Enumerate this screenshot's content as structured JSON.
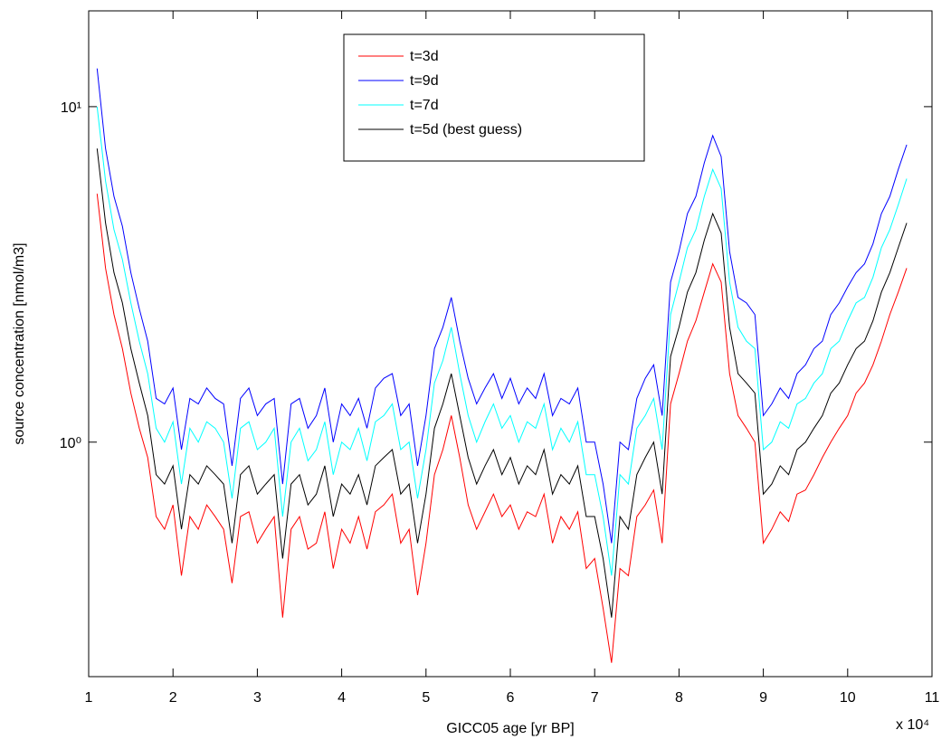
{
  "chart_data": {
    "type": "line",
    "x_label": "GICC05 age  [yr BP]",
    "y_label": "source concentration  [nmol/m3]",
    "x_multiplier": "x 10⁴",
    "log_y": true,
    "legend": "top-center",
    "xlim": [
      10000,
      110000
    ],
    "xticks": [
      {
        "value": 10000,
        "label": "1"
      },
      {
        "value": 20000,
        "label": "2"
      },
      {
        "value": 30000,
        "label": "3"
      },
      {
        "value": 40000,
        "label": "4"
      },
      {
        "value": 50000,
        "label": "5"
      },
      {
        "value": 60000,
        "label": "6"
      },
      {
        "value": 70000,
        "label": "7"
      },
      {
        "value": 80000,
        "label": "8"
      },
      {
        "value": 90000,
        "label": "9"
      },
      {
        "value": 100000,
        "label": "10"
      },
      {
        "value": 110000,
        "label": "11"
      }
    ],
    "ylim": [
      0.2,
      19.3
    ],
    "yticks": [
      {
        "value": 1,
        "label": "10⁰"
      },
      {
        "value": 10,
        "label": "10¹"
      }
    ],
    "x": [
      11000,
      12000,
      13000,
      14000,
      15000,
      16000,
      17000,
      18000,
      19000,
      20000,
      21000,
      22000,
      23000,
      24000,
      25000,
      26000,
      27000,
      28000,
      29000,
      30000,
      31000,
      32000,
      33000,
      34000,
      35000,
      36000,
      37000,
      38000,
      39000,
      40000,
      41000,
      42000,
      43000,
      44000,
      45000,
      46000,
      47000,
      48000,
      49000,
      50000,
      51000,
      52000,
      53000,
      54000,
      55000,
      56000,
      57000,
      58000,
      59000,
      60000,
      61000,
      62000,
      63000,
      64000,
      65000,
      66000,
      67000,
      68000,
      69000,
      70000,
      71000,
      72000,
      73000,
      74000,
      75000,
      76000,
      77000,
      78000,
      79000,
      80000,
      81000,
      82000,
      83000,
      84000,
      85000,
      86000,
      87000,
      88000,
      89000,
      90000,
      91000,
      92000,
      93000,
      94000,
      95000,
      96000,
      97000,
      98000,
      99000,
      100000,
      101000,
      102000,
      103000,
      104000,
      105000,
      106000,
      107000
    ],
    "series": [
      {
        "name": "t=3d",
        "color": "#ff0000",
        "values": [
          5.5,
          3.3,
          2.4,
          1.9,
          1.4,
          1.1,
          0.9,
          0.6,
          0.55,
          0.65,
          0.4,
          0.6,
          0.55,
          0.65,
          0.6,
          0.55,
          0.38,
          0.6,
          0.62,
          0.5,
          0.55,
          0.6,
          0.3,
          0.55,
          0.6,
          0.48,
          0.5,
          0.62,
          0.42,
          0.55,
          0.5,
          0.6,
          0.48,
          0.62,
          0.65,
          0.7,
          0.5,
          0.55,
          0.35,
          0.5,
          0.8,
          0.95,
          1.2,
          0.9,
          0.65,
          0.55,
          0.62,
          0.7,
          0.6,
          0.65,
          0.55,
          0.62,
          0.6,
          0.7,
          0.5,
          0.6,
          0.55,
          0.62,
          0.42,
          0.45,
          0.32,
          0.22,
          0.42,
          0.4,
          0.6,
          0.65,
          0.72,
          0.5,
          1.3,
          1.6,
          2.0,
          2.3,
          2.8,
          3.4,
          3.0,
          1.6,
          1.2,
          1.1,
          1.0,
          0.5,
          0.55,
          0.62,
          0.58,
          0.7,
          0.72,
          0.8,
          0.9,
          1.0,
          1.1,
          1.2,
          1.4,
          1.5,
          1.7,
          2.0,
          2.4,
          2.8,
          3.3
        ]
      },
      {
        "name": "t=9d",
        "color": "#0000ff",
        "values": [
          13,
          7.5,
          5.4,
          4.4,
          3.2,
          2.5,
          2.0,
          1.35,
          1.3,
          1.45,
          0.95,
          1.35,
          1.3,
          1.45,
          1.35,
          1.3,
          0.85,
          1.35,
          1.45,
          1.2,
          1.3,
          1.35,
          0.75,
          1.3,
          1.35,
          1.1,
          1.2,
          1.45,
          1.0,
          1.3,
          1.2,
          1.35,
          1.1,
          1.45,
          1.55,
          1.6,
          1.2,
          1.3,
          0.85,
          1.2,
          1.9,
          2.2,
          2.7,
          2.0,
          1.55,
          1.3,
          1.45,
          1.6,
          1.35,
          1.55,
          1.3,
          1.45,
          1.35,
          1.6,
          1.2,
          1.35,
          1.3,
          1.45,
          1.0,
          1.0,
          0.75,
          0.5,
          1.0,
          0.95,
          1.35,
          1.55,
          1.7,
          1.2,
          3.0,
          3.7,
          4.8,
          5.4,
          6.8,
          8.2,
          7.1,
          3.7,
          2.7,
          2.6,
          2.4,
          1.2,
          1.3,
          1.45,
          1.35,
          1.6,
          1.7,
          1.9,
          2.0,
          2.4,
          2.6,
          2.9,
          3.2,
          3.4,
          3.9,
          4.8,
          5.4,
          6.5,
          7.7
        ]
      },
      {
        "name": "t=7d",
        "color": "#00ffff",
        "values": [
          10,
          6,
          4.3,
          3.5,
          2.6,
          2.0,
          1.6,
          1.1,
          1.0,
          1.15,
          0.75,
          1.1,
          1.0,
          1.15,
          1.1,
          1.0,
          0.68,
          1.1,
          1.15,
          0.95,
          1.0,
          1.1,
          0.6,
          1.0,
          1.1,
          0.88,
          0.95,
          1.15,
          0.8,
          1.0,
          0.95,
          1.1,
          0.88,
          1.15,
          1.2,
          1.3,
          0.95,
          1.0,
          0.68,
          0.95,
          1.5,
          1.75,
          2.2,
          1.6,
          1.2,
          1.0,
          1.15,
          1.3,
          1.1,
          1.2,
          1.0,
          1.15,
          1.1,
          1.3,
          0.95,
          1.1,
          1.0,
          1.15,
          0.8,
          0.8,
          0.6,
          0.4,
          0.8,
          0.75,
          1.1,
          1.2,
          1.35,
          0.95,
          2.4,
          3.0,
          3.8,
          4.3,
          5.4,
          6.5,
          5.7,
          3.0,
          2.2,
          2.0,
          1.9,
          0.95,
          1.0,
          1.15,
          1.1,
          1.3,
          1.35,
          1.5,
          1.6,
          1.9,
          2.0,
          2.3,
          2.6,
          2.7,
          3.1,
          3.8,
          4.3,
          5.1,
          6.1
        ]
      },
      {
        "name": "t=5d (best guess)",
        "color": "#000000",
        "values": [
          7.5,
          4.5,
          3.2,
          2.6,
          1.9,
          1.5,
          1.2,
          0.8,
          0.75,
          0.85,
          0.55,
          0.8,
          0.75,
          0.85,
          0.8,
          0.75,
          0.5,
          0.8,
          0.85,
          0.7,
          0.75,
          0.8,
          0.45,
          0.75,
          0.8,
          0.65,
          0.7,
          0.85,
          0.6,
          0.75,
          0.7,
          0.8,
          0.65,
          0.85,
          0.9,
          0.95,
          0.7,
          0.75,
          0.5,
          0.7,
          1.1,
          1.3,
          1.6,
          1.2,
          0.9,
          0.75,
          0.85,
          0.95,
          0.8,
          0.9,
          0.75,
          0.85,
          0.8,
          0.95,
          0.7,
          0.8,
          0.75,
          0.85,
          0.6,
          0.6,
          0.45,
          0.3,
          0.6,
          0.55,
          0.8,
          0.9,
          1.0,
          0.7,
          1.8,
          2.2,
          2.8,
          3.2,
          4.0,
          4.8,
          4.2,
          2.2,
          1.6,
          1.5,
          1.4,
          0.7,
          0.75,
          0.85,
          0.8,
          0.95,
          1.0,
          1.1,
          1.2,
          1.4,
          1.5,
          1.7,
          1.9,
          2.0,
          2.3,
          2.8,
          3.2,
          3.8,
          4.5
        ]
      }
    ]
  }
}
